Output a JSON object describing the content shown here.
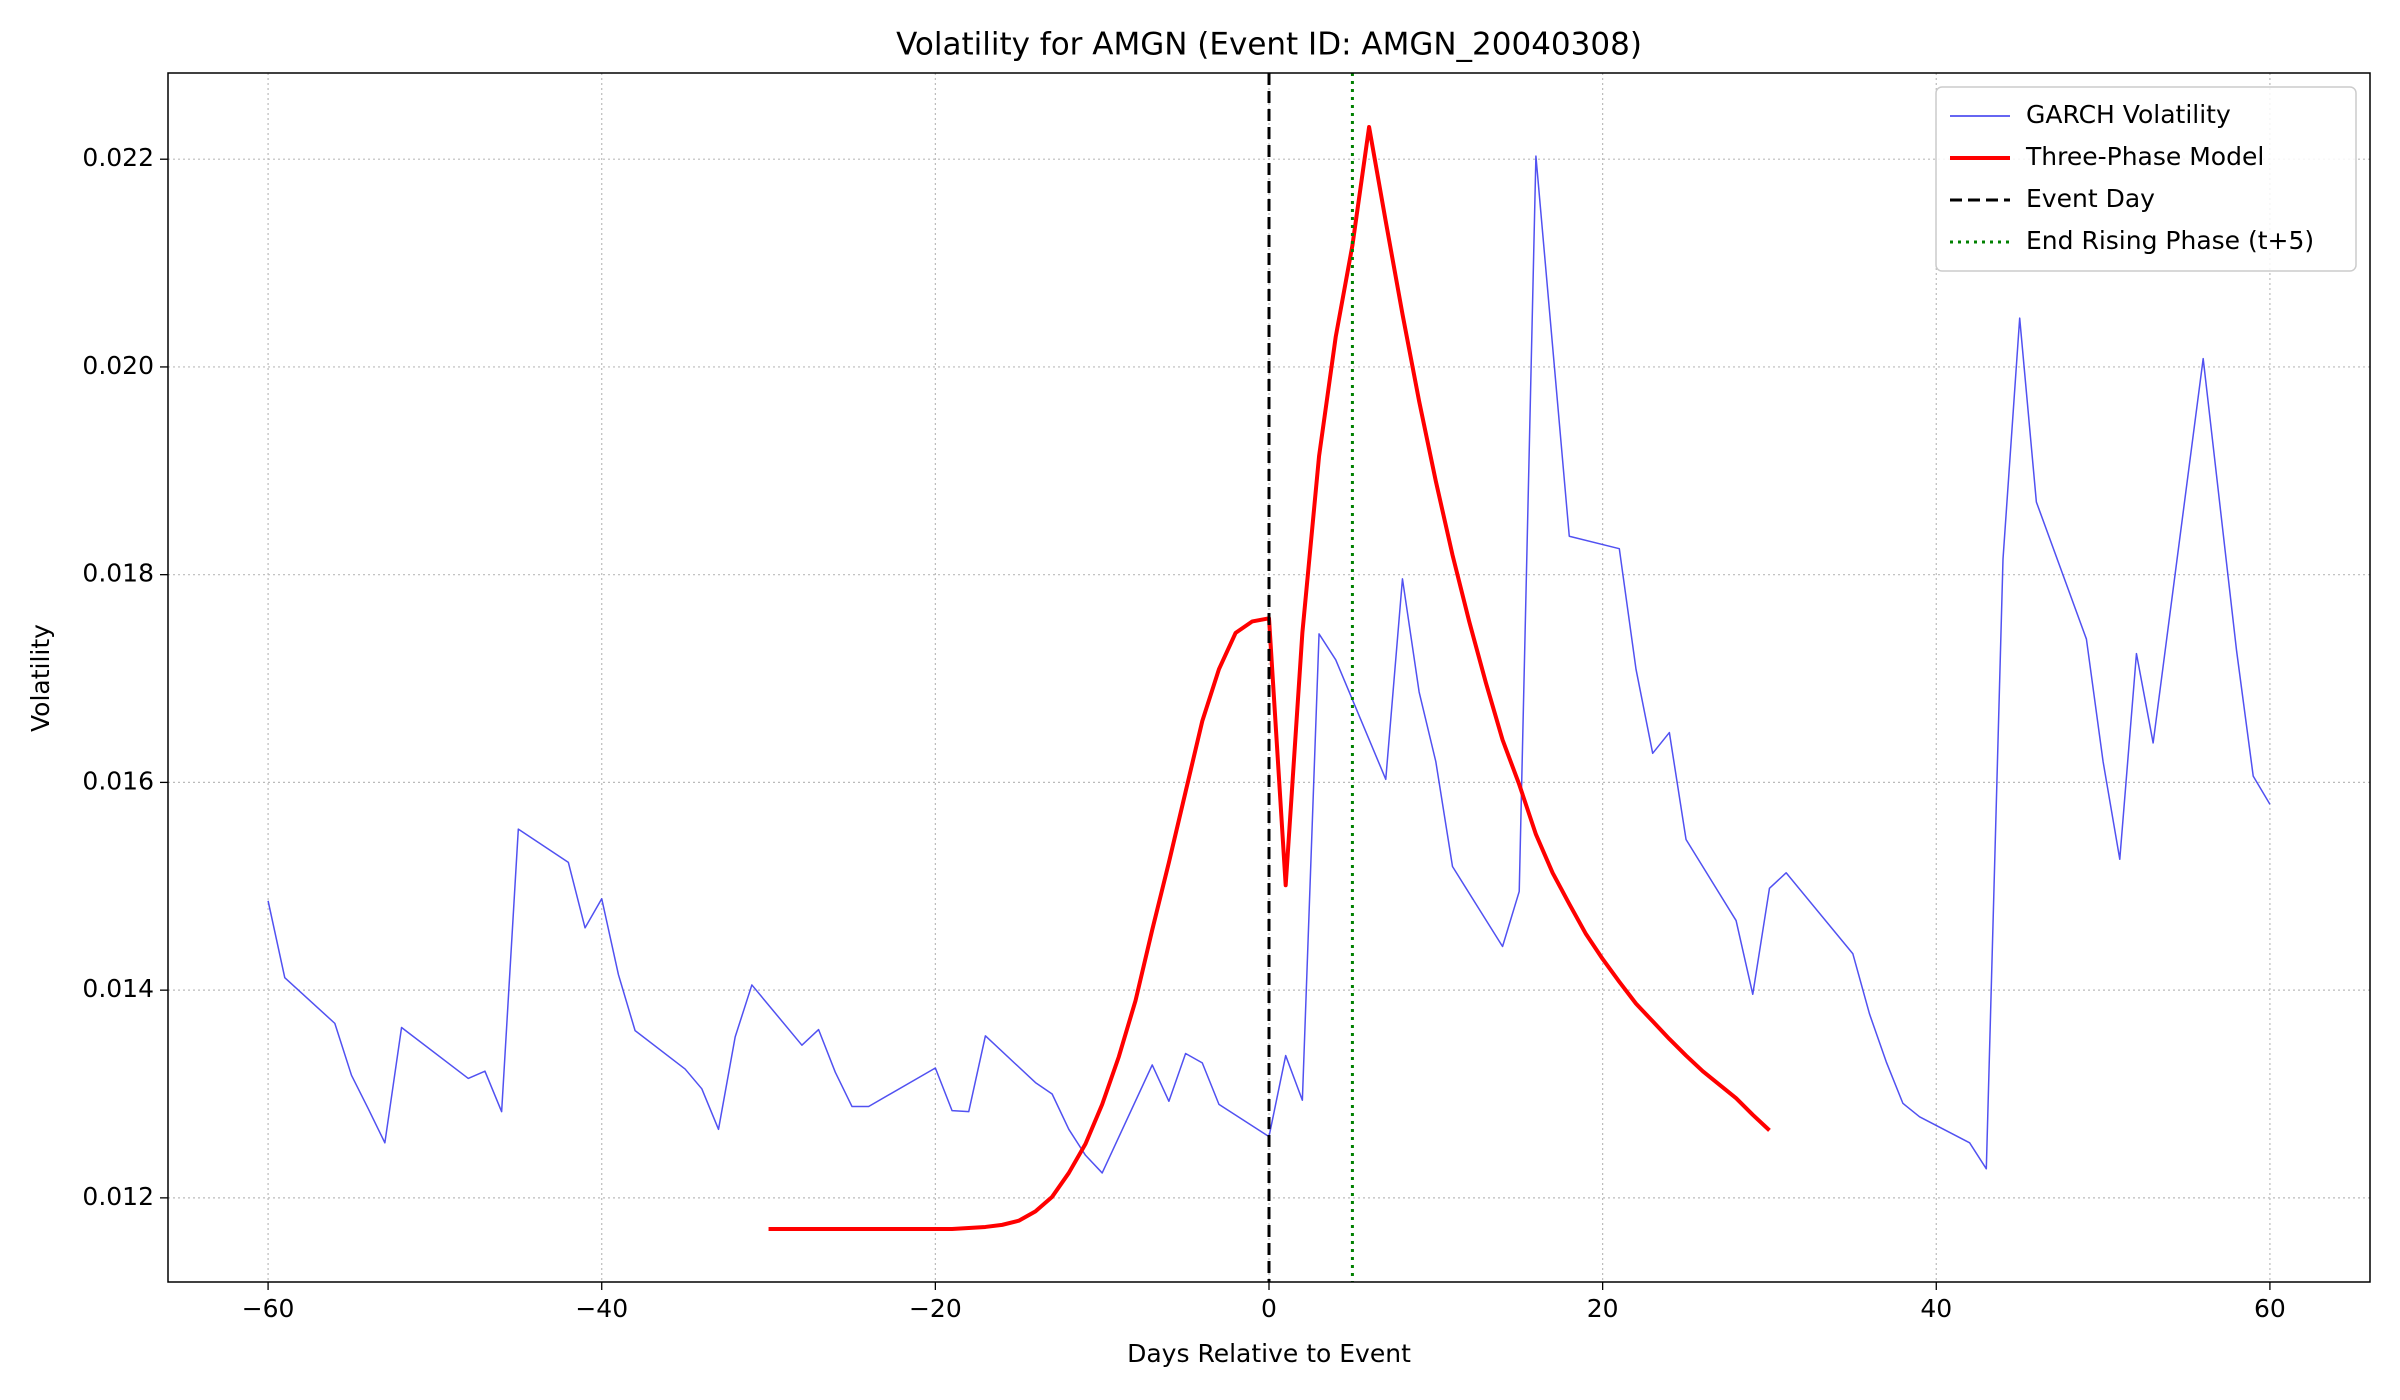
{
  "chart_data": {
    "type": "line",
    "title": "Volatility for AMGN (Event ID: AMGN_20040308)",
    "xlabel": "Days Relative to Event",
    "ylabel": "Volatility",
    "xlim": [
      -66,
      66
    ],
    "ylim": [
      0.01119,
      0.02283
    ],
    "xticks": [
      {
        "value": -60,
        "label": "−60"
      },
      {
        "value": -40,
        "label": "−40"
      },
      {
        "value": -20,
        "label": "−20"
      },
      0,
      20,
      40,
      60
    ],
    "yticks": [
      0.012,
      0.014,
      0.016,
      0.018,
      {
        "value": 0.02,
        "label": "0.020"
      },
      0.022
    ],
    "grid": true,
    "legend": "upper right",
    "series": [
      {
        "name": "GARCH Volatility",
        "color": "#3333ee",
        "width": 1.5,
        "x": [
          -60,
          -59,
          -56,
          -55,
          -54,
          -53,
          -52,
          -48,
          -47,
          -46,
          -45,
          -42,
          -41,
          -40,
          -39,
          -38,
          -35,
          -34,
          -33,
          -32,
          -31,
          -28,
          -27,
          -26,
          -25,
          -24,
          -20,
          -19,
          -18,
          -17,
          -14,
          -13,
          -12,
          -11,
          -10,
          -7,
          -6,
          -5,
          -4,
          -3,
          0,
          1,
          2,
          3,
          4,
          7,
          8,
          9,
          10,
          11,
          14,
          15,
          16,
          18,
          21,
          22,
          23,
          24,
          25,
          28,
          29,
          30,
          31,
          35,
          36,
          37,
          38,
          39,
          42,
          43,
          44,
          45,
          46,
          49,
          50,
          51,
          52,
          53,
          56,
          58,
          59,
          60
        ],
        "values": [
          0.01486,
          0.01412,
          0.01368,
          0.01318,
          0.01286,
          0.01253,
          0.01364,
          0.01315,
          0.01322,
          0.01283,
          0.01555,
          0.01523,
          0.0146,
          0.01488,
          0.01415,
          0.01361,
          0.01324,
          0.01305,
          0.01266,
          0.01355,
          0.01405,
          0.01347,
          0.01362,
          0.01321,
          0.01288,
          0.01288,
          0.01325,
          0.01284,
          0.01283,
          0.01356,
          0.01311,
          0.013,
          0.01266,
          0.01241,
          0.01224,
          0.01328,
          0.01293,
          0.01339,
          0.0133,
          0.0129,
          0.01259,
          0.01337,
          0.01294,
          0.01743,
          0.01718,
          0.01603,
          0.01796,
          0.01687,
          0.0162,
          0.01519,
          0.01442,
          0.01495,
          0.02203,
          0.01837,
          0.01825,
          0.01709,
          0.01628,
          0.01648,
          0.01545,
          0.01467,
          0.01396,
          0.01498,
          0.01513,
          0.01435,
          0.01377,
          0.01331,
          0.01291,
          0.01278,
          0.01253,
          0.01228,
          0.01815,
          0.02047,
          0.0187,
          0.01738,
          0.0162,
          0.01526,
          0.01724,
          0.01638,
          0.02008,
          0.01727,
          0.01606,
          0.01579
        ]
      },
      {
        "name": "Three-Phase Model",
        "color": "#ff0000",
        "width": 4,
        "x": [
          -30,
          -29,
          -28,
          -27,
          -26,
          -25,
          -24,
          -23,
          -22,
          -21,
          -20,
          -19,
          -18,
          -17,
          -16,
          -15,
          -14,
          -13,
          -12,
          -11,
          -10,
          -9,
          -8,
          -7,
          -6,
          -5,
          -4,
          -3,
          -2,
          -1,
          0,
          1,
          2,
          3,
          4,
          5,
          6,
          7,
          8,
          9,
          10,
          11,
          12,
          13,
          14,
          15,
          16,
          17,
          18,
          19,
          20,
          21,
          22,
          23,
          24,
          25,
          26,
          27,
          28,
          29,
          30
        ],
        "values": [
          0.0117,
          0.0117,
          0.0117,
          0.0117,
          0.0117,
          0.0117,
          0.0117,
          0.0117,
          0.0117,
          0.0117,
          0.0117,
          0.0117,
          0.01171,
          0.01172,
          0.01174,
          0.01178,
          0.01187,
          0.01201,
          0.01224,
          0.01252,
          0.0129,
          0.01336,
          0.0139,
          0.01458,
          0.01523,
          0.01591,
          0.01659,
          0.01709,
          0.01744,
          0.01755,
          0.01758,
          0.01501,
          0.01744,
          0.01914,
          0.02029,
          0.02117,
          0.02231,
          0.0214,
          0.02051,
          0.01967,
          0.0189,
          0.01819,
          0.01755,
          0.01696,
          0.01641,
          0.01598,
          0.0155,
          0.01513,
          0.01483,
          0.01454,
          0.0143,
          0.01408,
          0.01387,
          0.0137,
          0.01353,
          0.01337,
          0.01322,
          0.01309,
          0.01296,
          0.0128,
          0.01265
        ]
      }
    ],
    "vlines": [
      {
        "name": "Event Day",
        "x": 0,
        "color": "#000000",
        "dash": "dashed"
      },
      {
        "name": "End Rising Phase (t+5)",
        "x": 5,
        "color": "#008000",
        "dash": "dotted"
      }
    ]
  }
}
